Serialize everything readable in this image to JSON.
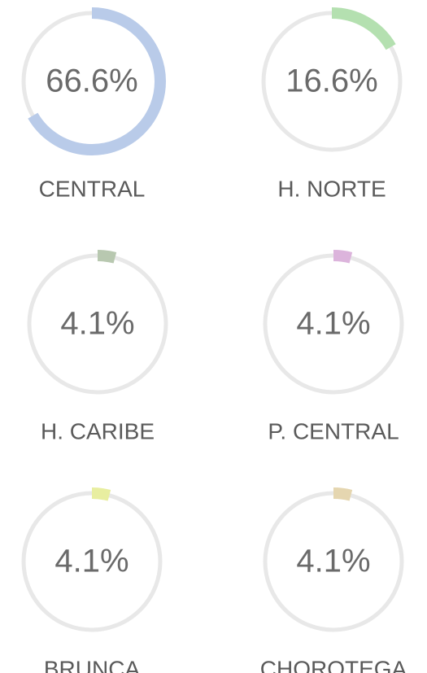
{
  "chart_data": [
    {
      "type": "gauge",
      "title": "CENTRAL",
      "values": [
        66.6
      ],
      "value_labels": [
        "66.6%"
      ],
      "ylim": [
        0,
        100
      ],
      "color": "#b9cbe9"
    },
    {
      "type": "gauge",
      "title": "H. NORTE",
      "values": [
        16.6
      ],
      "value_labels": [
        "16.6%"
      ],
      "ylim": [
        0,
        100
      ],
      "color": "#b4e0b0"
    },
    {
      "type": "gauge",
      "title": "H. CARIBE",
      "values": [
        4.1
      ],
      "value_labels": [
        "4.1%"
      ],
      "ylim": [
        0,
        100
      ],
      "color": "#b8c8b0"
    },
    {
      "type": "gauge",
      "title": "P. CENTRAL",
      "values": [
        4.1
      ],
      "value_labels": [
        "4.1%"
      ],
      "ylim": [
        0,
        100
      ],
      "color": "#dcb4dc"
    },
    {
      "type": "gauge",
      "title": "BRUNCA",
      "values": [
        4.1
      ],
      "value_labels": [
        "4.1%"
      ],
      "ylim": [
        0,
        100
      ],
      "color": "#e8eea0"
    },
    {
      "type": "gauge",
      "title": "CHOROTEGA",
      "values": [
        4.1
      ],
      "value_labels": [
        "4.1%"
      ],
      "ylim": [
        0,
        100
      ],
      "color": "#e5d6b0"
    }
  ]
}
